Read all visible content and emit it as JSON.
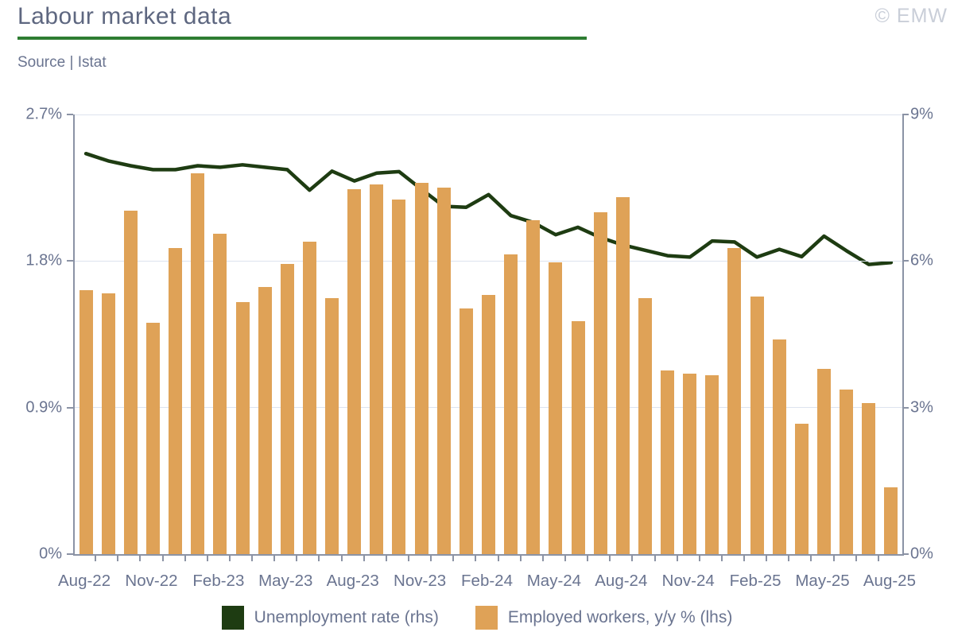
{
  "header": {
    "title": "Labour market data",
    "source": "Source | Istat",
    "copyright": "© EMW"
  },
  "legend": [
    {
      "label": "Unemployment rate (rhs)",
      "color": "#1e3c12"
    },
    {
      "label": "Employed workers, y/y % (lhs)",
      "color": "#dfa257"
    }
  ],
  "chart_data": {
    "type": "bar",
    "title": "Labour market data",
    "xlabel": "",
    "ylabel_left": "Employed workers, y/y %",
    "ylabel_right": "Unemployment rate %",
    "grid": true,
    "legend_position": "bottom",
    "categories": [
      "Aug-22",
      "Sep-22",
      "Oct-22",
      "Nov-22",
      "Dec-22",
      "Jan-23",
      "Feb-23",
      "Mar-23",
      "Apr-23",
      "May-23",
      "Jun-23",
      "Jul-23",
      "Aug-23",
      "Sep-23",
      "Oct-23",
      "Nov-23",
      "Dec-23",
      "Jan-24",
      "Feb-24",
      "Mar-24",
      "Apr-24",
      "May-24",
      "Jun-24",
      "Jul-24",
      "Aug-24",
      "Sep-24",
      "Oct-24",
      "Nov-24",
      "Dec-24",
      "Jan-25",
      "Feb-25",
      "Mar-25",
      "Apr-25",
      "May-25",
      "Jun-25",
      "Jul-25",
      "Aug-25"
    ],
    "x_tick_labels": [
      "Aug-22",
      "Nov-22",
      "Feb-23",
      "May-23",
      "Aug-23",
      "Nov-23",
      "Feb-24",
      "May-24",
      "Aug-24",
      "Nov-24",
      "Feb-25",
      "May-25",
      "Aug-25"
    ],
    "series": [
      {
        "name": "Employed workers, y/y % (lhs)",
        "type": "bar",
        "axis": "left",
        "color": "#dfa257",
        "values": [
          1.62,
          1.6,
          2.11,
          1.42,
          1.88,
          2.34,
          1.97,
          1.55,
          1.64,
          1.78,
          1.92,
          1.57,
          2.24,
          2.27,
          2.18,
          2.28,
          2.25,
          1.51,
          1.59,
          1.84,
          2.05,
          1.79,
          1.43,
          2.1,
          2.19,
          1.57,
          1.13,
          1.11,
          1.1,
          1.88,
          1.58,
          1.32,
          0.8,
          1.14,
          1.01,
          0.93,
          0.41
        ]
      },
      {
        "name": "Unemployment rate (rhs)",
        "type": "line",
        "axis": "right",
        "color": "#1e3c12",
        "values": [
          8.2,
          8.05,
          7.95,
          7.87,
          7.87,
          7.95,
          7.92,
          7.97,
          7.92,
          7.87,
          7.45,
          7.84,
          7.64,
          7.8,
          7.83,
          7.47,
          7.12,
          7.1,
          7.36,
          6.93,
          6.79,
          6.54,
          6.69,
          6.48,
          6.33,
          6.22,
          6.11,
          6.08,
          6.41,
          6.39,
          6.08,
          6.24,
          6.09,
          6.51,
          6.21,
          5.93,
          5.97
        ]
      }
    ],
    "left_axis": {
      "ticks": [
        "2.7%",
        "1.8%",
        "0.9%",
        "0%"
      ],
      "range": [
        0,
        2.7
      ]
    },
    "right_axis": {
      "ticks": [
        "9%",
        "6%",
        "3%",
        "0%"
      ],
      "range": [
        0,
        9
      ]
    }
  }
}
